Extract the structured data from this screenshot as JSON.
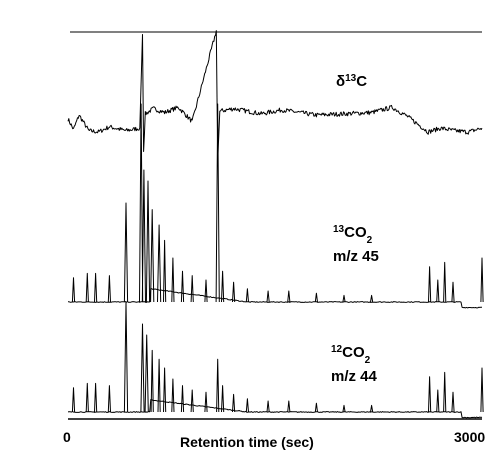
{
  "chart_data": {
    "type": "line",
    "title": "",
    "xlabel": "Retention time (sec)",
    "ylabel": "",
    "xlim": [
      0,
      3000
    ],
    "x_ticks": [
      "0",
      "3000"
    ],
    "grid": false,
    "legend": "none",
    "colors": {
      "trace": "#000000",
      "background": "#ffffff"
    },
    "series": [
      {
        "name": "δ13C",
        "label": {
          "delta": "δ",
          "mass": "13",
          "elem": "C"
        },
        "baseline": 0,
        "noise": 0.35,
        "points": [
          [
            0,
            0
          ],
          [
            40,
            -0.8
          ],
          [
            80,
            0.3
          ],
          [
            150,
            -0.9
          ],
          [
            220,
            -1.0
          ],
          [
            300,
            -0.6
          ],
          [
            420,
            -0.9
          ],
          [
            520,
            -0.7
          ],
          [
            540,
            6.5
          ],
          [
            548,
            -2.5
          ],
          [
            560,
            0.4
          ],
          [
            620,
            0.8
          ],
          [
            700,
            0.5
          ],
          [
            800,
            0.9
          ],
          [
            900,
            -0.2
          ],
          [
            1075,
            6.8
          ],
          [
            1085,
            -3.2
          ],
          [
            1100,
            0.6
          ],
          [
            1200,
            0.8
          ],
          [
            1400,
            0.4
          ],
          [
            1550,
            0.7
          ],
          [
            1800,
            0.3
          ],
          [
            2200,
            0.5
          ],
          [
            2350,
            0.9
          ],
          [
            2460,
            0.2
          ],
          [
            2610,
            -1.0
          ],
          [
            2700,
            -0.7
          ],
          [
            2800,
            -0.9
          ],
          [
            2900,
            -1.0
          ],
          [
            3000,
            -0.7
          ]
        ]
      },
      {
        "name": "13CO2 m/z 45",
        "label": {
          "mass": "13",
          "mol": "CO",
          "sub": "2",
          "mz": "m/z 45"
        },
        "baseline": 0,
        "noise": 0.04,
        "hump": {
          "from": 600,
          "to": 1300,
          "height": 0.6
        },
        "peaks": [
          [
            40,
            1.1
          ],
          [
            140,
            1.3
          ],
          [
            200,
            1.3
          ],
          [
            300,
            1.2
          ],
          [
            420,
            4.5
          ],
          [
            530,
            9.0
          ],
          [
            550,
            6.0
          ],
          [
            580,
            5.5
          ],
          [
            610,
            4.2
          ],
          [
            660,
            3.5
          ],
          [
            700,
            2.8
          ],
          [
            760,
            2.0
          ],
          [
            830,
            1.4
          ],
          [
            900,
            1.2
          ],
          [
            1000,
            1.0
          ],
          [
            1085,
            9.0
          ],
          [
            1120,
            1.4
          ],
          [
            1200,
            0.9
          ],
          [
            1300,
            0.6
          ],
          [
            1450,
            0.5
          ],
          [
            1600,
            0.5
          ],
          [
            1800,
            0.4
          ],
          [
            2000,
            0.3
          ],
          [
            2200,
            0.3
          ],
          [
            2620,
            1.6
          ],
          [
            2680,
            1.0
          ],
          [
            2730,
            1.8
          ],
          [
            2790,
            0.9
          ],
          [
            3000,
            2.0
          ]
        ],
        "steps": [
          [
            2850,
            -0.25
          ]
        ]
      },
      {
        "name": "12CO2 m/z 44",
        "label": {
          "mass": "12",
          "mol": "CO",
          "sub": "2",
          "mz": "m/z 44"
        },
        "baseline": 0,
        "noise": 0.04,
        "hump": {
          "from": 600,
          "to": 1300,
          "height": 0.55
        },
        "peaks": [
          [
            40,
            1.1
          ],
          [
            140,
            1.3
          ],
          [
            200,
            1.3
          ],
          [
            300,
            1.2
          ],
          [
            420,
            5.0
          ],
          [
            540,
            4.0
          ],
          [
            570,
            3.5
          ],
          [
            610,
            2.8
          ],
          [
            660,
            2.4
          ],
          [
            700,
            2.0
          ],
          [
            760,
            1.5
          ],
          [
            830,
            1.2
          ],
          [
            900,
            1.0
          ],
          [
            1000,
            0.9
          ],
          [
            1085,
            2.4
          ],
          [
            1120,
            1.2
          ],
          [
            1200,
            0.8
          ],
          [
            1300,
            0.6
          ],
          [
            1450,
            0.5
          ],
          [
            1600,
            0.5
          ],
          [
            1800,
            0.4
          ],
          [
            2000,
            0.3
          ],
          [
            2200,
            0.3
          ],
          [
            2620,
            1.6
          ],
          [
            2680,
            1.0
          ],
          [
            2730,
            1.8
          ],
          [
            2790,
            0.9
          ],
          [
            3000,
            2.0
          ]
        ],
        "steps": [
          [
            2850,
            -0.25
          ]
        ]
      }
    ]
  }
}
